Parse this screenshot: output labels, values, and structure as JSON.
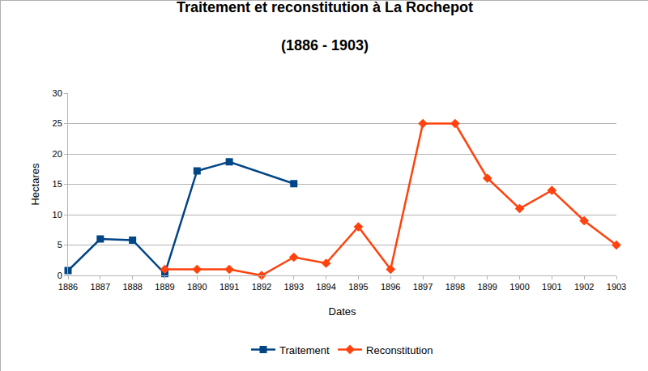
{
  "chart_data": {
    "type": "line",
    "title": "Traitement et reconstitution à La Rochepot",
    "subtitle": "(1886 - 1903)",
    "x_label": "Dates",
    "y_label": "Hectares",
    "xlim": [
      1886,
      1903
    ],
    "xticks": [
      1886,
      1887,
      1888,
      1889,
      1890,
      1891,
      1892,
      1893,
      1894,
      1895,
      1896,
      1897,
      1898,
      1899,
      1900,
      1901,
      1902,
      1903
    ],
    "ylim": [
      0,
      30
    ],
    "yticks": [
      0,
      5,
      10,
      15,
      20,
      25,
      30
    ],
    "grid": true,
    "legend": "bottom",
    "series": [
      {
        "name": "Traitement",
        "color": "#004586",
        "marker": "square",
        "x": [
          1886,
          1887,
          1888,
          1889,
          1890,
          1891,
          1893
        ],
        "values": [
          0.8,
          6.0,
          5.8,
          0.3,
          17.2,
          18.7,
          15.1
        ]
      },
      {
        "name": "Reconstitution",
        "color": "#ff420e",
        "marker": "diamond",
        "x": [
          1889,
          1890,
          1891,
          1892,
          1893,
          1894,
          1895,
          1896,
          1897,
          1898,
          1899,
          1900,
          1901,
          1902,
          1903
        ],
        "values": [
          1,
          1,
          1,
          0,
          3,
          2,
          8,
          1,
          25,
          25,
          16,
          11,
          14,
          9,
          5
        ]
      }
    ]
  }
}
